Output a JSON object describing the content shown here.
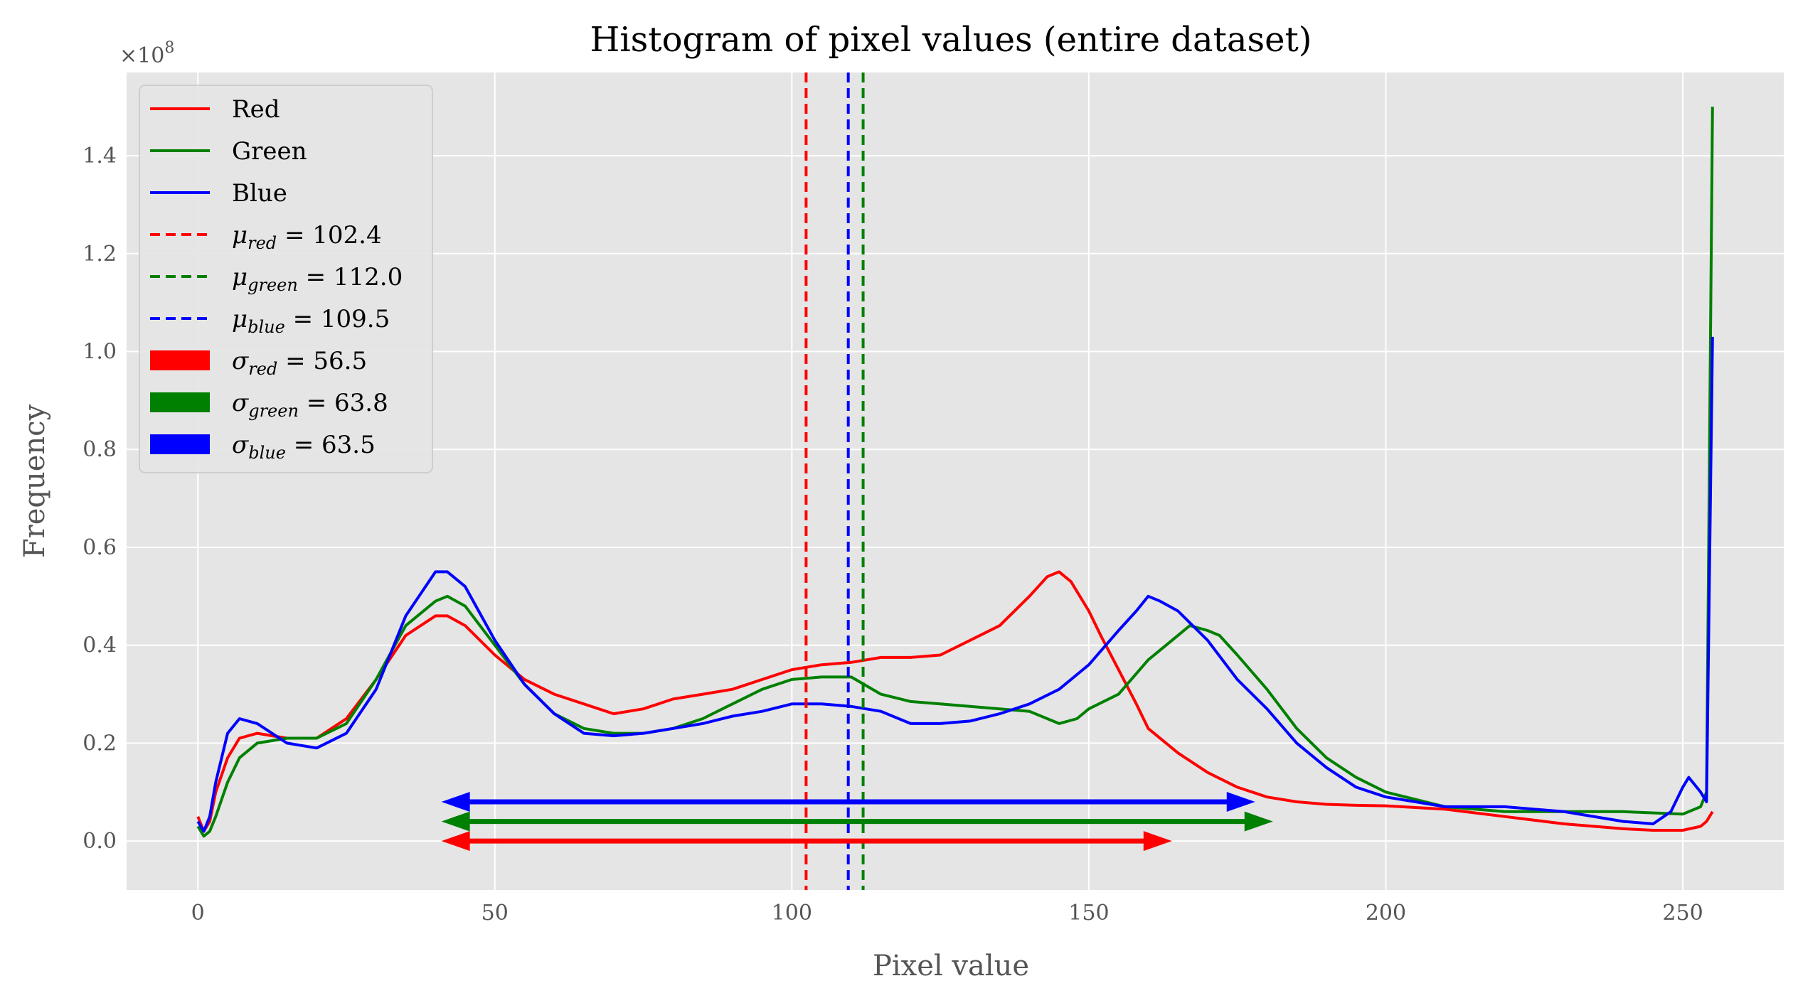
{
  "chart_data": {
    "type": "line",
    "title": "Histogram of pixel values (entire dataset)",
    "xlabel": "Pixel value",
    "ylabel": "Frequency",
    "y_scale_label": "×10",
    "y_scale_exponent": "8",
    "xlim": [
      -12,
      267
    ],
    "ylim": [
      -0.1,
      1.57
    ],
    "xticks": [
      0,
      50,
      100,
      150,
      200,
      250
    ],
    "xtick_labels": [
      "0",
      "50",
      "100",
      "150",
      "200",
      "250"
    ],
    "yticks": [
      0.0,
      0.2,
      0.4,
      0.6,
      0.8,
      1.0,
      1.2,
      1.4
    ],
    "ytick_labels": [
      "0.0",
      "0.2",
      "0.4",
      "0.6",
      "0.8",
      "1.0",
      "1.2",
      "1.4"
    ],
    "grid": true,
    "legend_position": "top-left",
    "series": [
      {
        "name": "Red",
        "color": "#ff0000",
        "x": [
          0,
          1,
          2,
          3,
          5,
          7,
          10,
          15,
          20,
          25,
          30,
          35,
          40,
          42,
          45,
          50,
          55,
          60,
          65,
          70,
          75,
          80,
          85,
          90,
          95,
          100,
          105,
          110,
          115,
          120,
          125,
          130,
          135,
          140,
          143,
          145,
          147,
          150,
          152,
          155,
          158,
          160,
          163,
          165,
          170,
          175,
          180,
          185,
          190,
          195,
          200,
          210,
          220,
          230,
          240,
          245,
          250,
          253,
          254,
          255
        ],
        "values": [
          0.05,
          0.02,
          0.04,
          0.1,
          0.17,
          0.21,
          0.22,
          0.21,
          0.21,
          0.25,
          0.33,
          0.42,
          0.46,
          0.46,
          0.44,
          0.38,
          0.33,
          0.3,
          0.28,
          0.26,
          0.27,
          0.29,
          0.3,
          0.31,
          0.33,
          0.35,
          0.36,
          0.365,
          0.375,
          0.375,
          0.38,
          0.41,
          0.44,
          0.5,
          0.54,
          0.55,
          0.53,
          0.47,
          0.42,
          0.35,
          0.28,
          0.23,
          0.2,
          0.18,
          0.14,
          0.11,
          0.09,
          0.08,
          0.075,
          0.073,
          0.072,
          0.065,
          0.05,
          0.035,
          0.025,
          0.022,
          0.022,
          0.03,
          0.04,
          0.06
        ]
      },
      {
        "name": "Green",
        "color": "#008000",
        "x": [
          0,
          1,
          2,
          3,
          5,
          7,
          10,
          15,
          20,
          25,
          30,
          35,
          40,
          42,
          45,
          50,
          55,
          60,
          65,
          70,
          75,
          80,
          85,
          90,
          95,
          100,
          105,
          110,
          115,
          120,
          125,
          130,
          135,
          140,
          145,
          148,
          150,
          155,
          160,
          163,
          165,
          167,
          170,
          172,
          175,
          180,
          185,
          190,
          195,
          200,
          210,
          220,
          230,
          240,
          250,
          253,
          254,
          255
        ],
        "values": [
          0.03,
          0.01,
          0.02,
          0.05,
          0.12,
          0.17,
          0.2,
          0.21,
          0.21,
          0.24,
          0.33,
          0.44,
          0.49,
          0.5,
          0.48,
          0.4,
          0.32,
          0.26,
          0.23,
          0.22,
          0.22,
          0.23,
          0.25,
          0.28,
          0.31,
          0.33,
          0.335,
          0.335,
          0.3,
          0.285,
          0.28,
          0.275,
          0.27,
          0.265,
          0.24,
          0.25,
          0.27,
          0.3,
          0.37,
          0.4,
          0.42,
          0.44,
          0.43,
          0.42,
          0.38,
          0.31,
          0.23,
          0.17,
          0.13,
          0.1,
          0.07,
          0.06,
          0.06,
          0.06,
          0.055,
          0.07,
          0.1,
          1.5
        ]
      },
      {
        "name": "Blue",
        "color": "#0000ff",
        "x": [
          0,
          1,
          2,
          3,
          5,
          7,
          10,
          15,
          20,
          25,
          30,
          35,
          40,
          42,
          45,
          50,
          55,
          60,
          65,
          70,
          75,
          80,
          85,
          90,
          95,
          100,
          105,
          110,
          115,
          120,
          125,
          130,
          135,
          140,
          145,
          150,
          155,
          158,
          160,
          162,
          165,
          170,
          175,
          180,
          185,
          190,
          195,
          200,
          210,
          220,
          230,
          240,
          245,
          248,
          250,
          251,
          253,
          254,
          255
        ],
        "values": [
          0.04,
          0.02,
          0.05,
          0.12,
          0.22,
          0.25,
          0.24,
          0.2,
          0.19,
          0.22,
          0.31,
          0.46,
          0.55,
          0.55,
          0.52,
          0.41,
          0.32,
          0.26,
          0.22,
          0.215,
          0.22,
          0.23,
          0.24,
          0.255,
          0.265,
          0.28,
          0.28,
          0.275,
          0.265,
          0.24,
          0.24,
          0.245,
          0.26,
          0.28,
          0.31,
          0.36,
          0.43,
          0.47,
          0.5,
          0.49,
          0.47,
          0.41,
          0.33,
          0.27,
          0.2,
          0.15,
          0.11,
          0.09,
          0.07,
          0.07,
          0.06,
          0.04,
          0.035,
          0.06,
          0.11,
          0.13,
          0.1,
          0.08,
          1.03
        ]
      }
    ],
    "means": [
      {
        "label_sym": "μ",
        "label_sub": "red",
        "label_val": " = 102.4",
        "value": 102.4,
        "color": "#ff0000"
      },
      {
        "label_sym": "μ",
        "label_sub": "green",
        "label_val": " = 112.0",
        "value": 112.0,
        "color": "#008000"
      },
      {
        "label_sym": "μ",
        "label_sub": "blue",
        "label_val": " = 109.5",
        "value": 109.5,
        "color": "#0000ff"
      }
    ],
    "std_arrows": [
      {
        "label_sym": "σ",
        "label_sub": "red",
        "label_val": " = 56.5",
        "value": 56.5,
        "from": 41,
        "to": 164,
        "y": 0.0,
        "color": "#ff0000"
      },
      {
        "label_sym": "σ",
        "label_sub": "green",
        "label_val": " = 63.8",
        "value": 63.8,
        "from": 41,
        "to": 181,
        "y": 0.04,
        "color": "#008000"
      },
      {
        "label_sym": "σ",
        "label_sub": "blue",
        "label_val": " = 63.5",
        "value": 63.5,
        "from": 41,
        "to": 178,
        "y": 0.08,
        "color": "#0000ff"
      }
    ]
  }
}
